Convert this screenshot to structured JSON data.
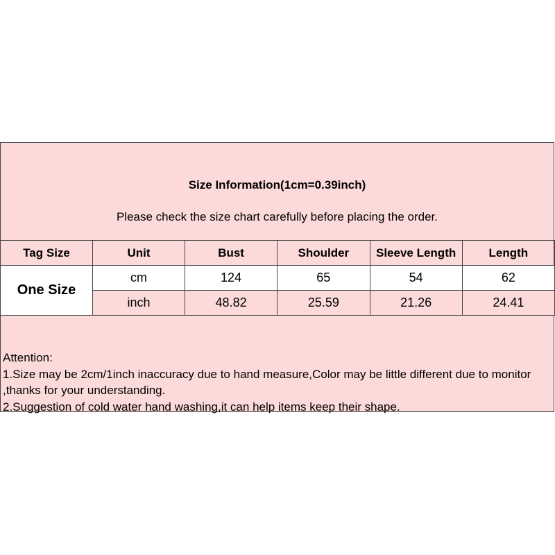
{
  "title": "Size Information(1cm=0.39inch)",
  "subtitle": "Please check the size chart carefully before placing the order.",
  "headers": [
    "Tag Size",
    "Unit",
    "Bust",
    "Shoulder",
    "Sleeve Length",
    "Length"
  ],
  "tag_size": "One Size",
  "rows": [
    {
      "unit": "cm",
      "values": [
        "124",
        "65",
        "54",
        "62"
      ]
    },
    {
      "unit": "inch",
      "values": [
        "48.82",
        "25.59",
        "21.26",
        "24.41"
      ]
    }
  ],
  "attention": [
    "Attention:",
    "1.Size may be 2cm/1inch inaccuracy due to hand measure,Color may be little different due to monitor ,thanks for your understanding.",
    "2.Suggestion of cold water hand washing,it can help items keep their shape."
  ],
  "colors": {
    "background": "#fcdada",
    "border": "#444444"
  }
}
